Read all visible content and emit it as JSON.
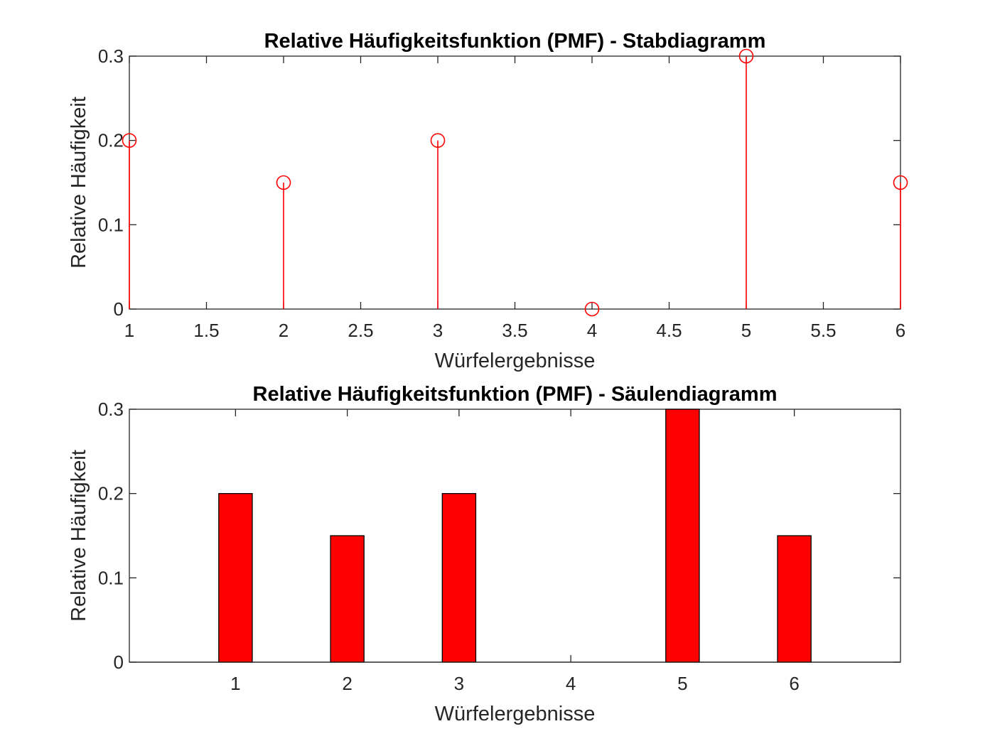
{
  "chart_data": [
    {
      "type": "stem",
      "title": "Relative Häufigkeitsfunktion (PMF) - Stabdiagramm",
      "xlabel": "Würfelergebnisse",
      "ylabel": "Relative Häufigkeit",
      "x": [
        1,
        2,
        3,
        4,
        5,
        6
      ],
      "y": [
        0.2,
        0.15,
        0.2,
        0,
        0.3,
        0.15
      ],
      "xlim": [
        1,
        6
      ],
      "ylim": [
        0,
        0.3
      ],
      "xticks": [
        1,
        1.5,
        2,
        2.5,
        3,
        3.5,
        4,
        4.5,
        5,
        5.5,
        6
      ],
      "xtick_labels": [
        "1",
        "1.5",
        "2",
        "2.5",
        "3",
        "3.5",
        "4",
        "4.5",
        "5",
        "5.5",
        "6"
      ],
      "yticks": [
        0,
        0.1,
        0.2,
        0.3
      ],
      "ytick_labels": [
        "0",
        "0.1",
        "0.2",
        "0.3"
      ],
      "marker": "circle-open",
      "color": "#ff0000",
      "grid": false
    },
    {
      "type": "bar",
      "title": "Relative Häufigkeitsfunktion (PMF) - Säulendiagramm",
      "xlabel": "Würfelergebnisse",
      "ylabel": "Relative Häufigkeit",
      "categories": [
        1,
        2,
        3,
        4,
        5,
        6
      ],
      "values": [
        0.2,
        0.15,
        0.2,
        0,
        0.3,
        0.15
      ],
      "xlim": [
        0.05,
        6.95
      ],
      "ylim": [
        0,
        0.3
      ],
      "bar_width": 0.3,
      "xticks": [
        1,
        2,
        3,
        4,
        5,
        6
      ],
      "xtick_labels": [
        "1",
        "2",
        "3",
        "4",
        "5",
        "6"
      ],
      "yticks": [
        0,
        0.1,
        0.2,
        0.3
      ],
      "ytick_labels": [
        "0",
        "0.1",
        "0.2",
        "0.3"
      ],
      "color": "#ff0000",
      "edge_color": "#000000",
      "grid": false
    }
  ]
}
